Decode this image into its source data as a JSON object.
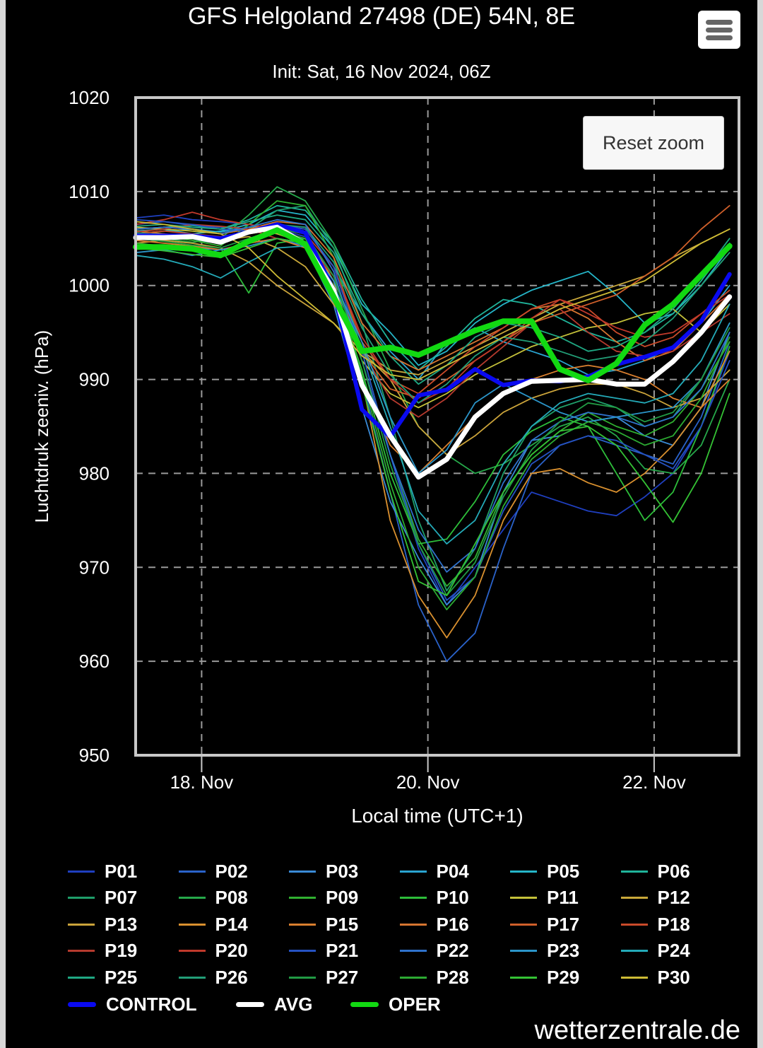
{
  "header": {
    "title": "GFS Helgoland 27498 (DE) 54N, 8E",
    "subtitle": "Init: Sat, 16 Nov 2024, 06Z",
    "menu_icon": "hamburger-menu-icon",
    "reset_zoom_label": "Reset zoom"
  },
  "credit": "wetterzentrale.de",
  "chart_data": {
    "type": "line",
    "title": "GFS Helgoland 27498 (DE) 54N, 8E",
    "subtitle": "Init: Sat, 16 Nov 2024, 06Z",
    "xlabel": "Local time (UTC+1)",
    "ylabel": "Luchtdruk zeeniv. (hPa)",
    "ylim": [
      950,
      1020
    ],
    "yticks": [
      950,
      960,
      970,
      980,
      990,
      1000,
      1010,
      1020
    ],
    "xticks": [
      {
        "label": "18. Nov",
        "hours": 0
      },
      {
        "label": "20. Nov",
        "hours": 48
      },
      {
        "label": "22. Nov",
        "hours": 96
      }
    ],
    "xlim_hours": [
      -14,
      114
    ],
    "x_hours": [
      -14,
      -8,
      -2,
      4,
      10,
      16,
      22,
      28,
      34,
      40,
      46,
      52,
      58,
      64,
      70,
      76,
      82,
      88,
      94,
      100,
      106,
      112
    ],
    "grid": true,
    "legend_position": "bottom",
    "series": [
      {
        "name": "P01",
        "color": "#1f3fbf",
        "width": 1.8,
        "values": [
          1007.2,
          1007.5,
          1007.0,
          1006.8,
          1006.5,
          1006.0,
          1005.2,
          1001.0,
          993.0,
          982.0,
          972.0,
          966.0,
          970.0,
          974.0,
          978.0,
          977.0,
          976.0,
          975.5,
          977.5,
          980.0,
          985.0,
          993.0
        ]
      },
      {
        "name": "P02",
        "color": "#2a62c9",
        "width": 1.8,
        "values": [
          1006.5,
          1006.8,
          1006.4,
          1006.2,
          1006.0,
          1005.5,
          1005.0,
          1000.0,
          990.0,
          978.0,
          966.0,
          960.0,
          963.0,
          972.0,
          980.0,
          983.0,
          984.0,
          983.0,
          982.0,
          981.0,
          986.0,
          994.0
        ]
      },
      {
        "name": "P03",
        "color": "#3a8ad6",
        "width": 1.8,
        "values": [
          1004.0,
          1004.2,
          1004.0,
          1003.8,
          1004.5,
          1005.0,
          1004.2,
          998.0,
          987.0,
          977.0,
          971.0,
          966.0,
          969.0,
          978.0,
          983.5,
          984.0,
          985.5,
          986.0,
          984.0,
          983.0,
          987.0,
          995.0
        ]
      },
      {
        "name": "P04",
        "color": "#2aa3d0",
        "width": 1.8,
        "values": [
          1005.5,
          1005.8,
          1006.0,
          1005.7,
          1006.2,
          1006.5,
          1006.0,
          1002.0,
          997.0,
          993.0,
          990.0,
          994.0,
          995.5,
          994.0,
          993.0,
          992.0,
          990.5,
          991.0,
          992.0,
          993.5,
          996.0,
          1000.0
        ]
      },
      {
        "name": "P05",
        "color": "#25b5c8",
        "width": 1.8,
        "values": [
          1005.8,
          1006.0,
          1005.5,
          1005.8,
          1006.5,
          1008.0,
          1007.5,
          1004.0,
          998.0,
          995.0,
          991.5,
          993.0,
          996.0,
          998.0,
          999.5,
          1000.5,
          1001.5,
          999.0,
          996.0,
          997.0,
          1000.0,
          1004.0
        ]
      },
      {
        "name": "P06",
        "color": "#1fb39a",
        "width": 1.8,
        "values": [
          1006.0,
          1006.2,
          1006.4,
          1006.0,
          1007.0,
          1008.5,
          1008.0,
          1004.5,
          998.5,
          994.0,
          991.0,
          993.5,
          996.5,
          998.5,
          998.0,
          996.5,
          995.0,
          994.0,
          995.0,
          997.0,
          1000.5,
          1004.5
        ]
      },
      {
        "name": "P07",
        "color": "#1f9e6a",
        "width": 1.8,
        "values": [
          1005.0,
          1005.2,
          1004.8,
          1004.5,
          1006.0,
          1008.0,
          1008.5,
          1004.0,
          996.0,
          986.0,
          975.0,
          967.5,
          972.0,
          980.0,
          985.0,
          987.0,
          988.0,
          987.0,
          985.0,
          986.0,
          990.0,
          996.0
        ]
      },
      {
        "name": "P08",
        "color": "#26a84a",
        "width": 1.8,
        "values": [
          1005.3,
          1005.0,
          1004.6,
          1005.0,
          1007.5,
          1010.5,
          1009.0,
          1004.5,
          997.5,
          991.0,
          985.0,
          982.0,
          980.0,
          981.0,
          983.0,
          985.0,
          986.0,
          984.0,
          980.5,
          980.0,
          983.0,
          990.0
        ]
      },
      {
        "name": "P09",
        "color": "#30b030",
        "width": 1.8,
        "values": [
          1005.5,
          1005.2,
          1004.8,
          1004.2,
          1006.5,
          1009.0,
          1008.5,
          1003.0,
          993.0,
          982.0,
          973.0,
          968.0,
          971.0,
          978.0,
          982.0,
          984.5,
          986.5,
          985.0,
          984.0,
          985.5,
          989.0,
          994.0
        ]
      },
      {
        "name": "P10",
        "color": "#2dbd3a",
        "width": 1.8,
        "values": [
          1005.0,
          1004.8,
          1004.5,
          1004.0,
          999.2,
          1004.5,
          1005.0,
          1000.0,
          991.0,
          980.0,
          972.5,
          973.0,
          977.0,
          982.0,
          984.5,
          986.0,
          985.0,
          980.0,
          975.0,
          978.0,
          985.0,
          993.5
        ]
      },
      {
        "name": "P11",
        "color": "#c4c13a",
        "width": 1.8,
        "values": [
          1006.2,
          1006.0,
          1005.8,
          1005.5,
          1006.0,
          1005.5,
          1004.5,
          1000.0,
          992.0,
          988.5,
          987.0,
          988.5,
          990.5,
          992.0,
          993.5,
          994.5,
          995.5,
          996.0,
          997.0,
          997.5,
          995.0,
          998.0
        ]
      },
      {
        "name": "P12",
        "color": "#c9a83a",
        "width": 1.8,
        "values": [
          1005.8,
          1005.5,
          1005.0,
          1004.8,
          1005.2,
          1004.0,
          1002.0,
          998.0,
          993.0,
          991.0,
          990.5,
          992.0,
          993.5,
          995.0,
          996.5,
          998.0,
          999.0,
          1000.0,
          1001.0,
          1003.0,
          1004.5,
          1006.0
        ]
      },
      {
        "name": "P13",
        "color": "#caa33a",
        "width": 1.8,
        "values": [
          1004.5,
          1004.8,
          1004.5,
          1004.0,
          1002.5,
          1000.0,
          998.0,
          996.0,
          993.0,
          990.0,
          985.0,
          982.0,
          984.0,
          986.5,
          988.0,
          989.0,
          989.5,
          989.5,
          988.5,
          987.0,
          988.0,
          991.0
        ]
      },
      {
        "name": "P14",
        "color": "#d9902f",
        "width": 1.8,
        "values": [
          1005.0,
          1005.2,
          1005.0,
          1004.8,
          1005.5,
          1006.0,
          1005.5,
          1000.5,
          990.0,
          975.0,
          967.0,
          962.5,
          967.0,
          975.0,
          980.0,
          980.5,
          979.0,
          978.0,
          980.0,
          983.0,
          987.0,
          993.0
        ]
      },
      {
        "name": "P15",
        "color": "#d97f2f",
        "width": 1.8,
        "values": [
          1004.8,
          1004.5,
          1004.2,
          1003.8,
          1004.5,
          1005.0,
          1004.0,
          999.0,
          990.0,
          983.0,
          980.0,
          983.0,
          986.0,
          988.5,
          990.0,
          991.0,
          991.5,
          991.0,
          990.0,
          988.0,
          987.0,
          990.0
        ]
      },
      {
        "name": "P16",
        "color": "#d67530",
        "width": 1.8,
        "values": [
          1006.0,
          1006.2,
          1006.0,
          1005.5,
          1006.0,
          1006.8,
          1006.5,
          1003.0,
          996.0,
          992.5,
          991.0,
          992.5,
          994.0,
          995.5,
          997.5,
          998.0,
          996.5,
          994.0,
          992.0,
          993.0,
          996.0,
          999.0
        ]
      },
      {
        "name": "P17",
        "color": "#cf5f2a",
        "width": 1.8,
        "values": [
          1005.2,
          1005.5,
          1005.2,
          1005.0,
          1005.5,
          1006.2,
          1005.5,
          1001.0,
          993.0,
          989.0,
          988.0,
          990.0,
          992.0,
          994.0,
          996.0,
          997.0,
          998.0,
          999.0,
          1001.0,
          1003.0,
          1006.0,
          1008.5
        ]
      },
      {
        "name": "P18",
        "color": "#c94a2a",
        "width": 1.8,
        "values": [
          1005.5,
          1005.8,
          1005.5,
          1005.2,
          1005.8,
          1006.5,
          1006.0,
          1002.0,
          994.0,
          990.0,
          988.5,
          991.0,
          993.5,
          995.5,
          997.5,
          998.5,
          997.5,
          995.0,
          993.5,
          994.5,
          997.0,
          999.5
        ]
      },
      {
        "name": "P19",
        "color": "#b53a2e",
        "width": 1.8,
        "values": [
          1005.7,
          1006.0,
          1006.5,
          1006.3,
          1006.0,
          1005.0,
          1004.5,
          1001.0,
          993.0,
          988.0,
          986.0,
          988.0,
          991.0,
          993.5,
          996.0,
          997.5,
          995.0,
          993.0,
          992.5,
          993.0,
          995.0,
          997.0
        ]
      },
      {
        "name": "P20",
        "color": "#c0392b",
        "width": 1.8,
        "values": [
          1006.5,
          1007.0,
          1007.8,
          1007.0,
          1006.5,
          1006.0,
          1005.5,
          1002.0,
          994.5,
          990.0,
          987.5,
          989.0,
          992.0,
          994.0,
          996.5,
          998.5,
          997.0,
          995.5,
          994.5,
          995.0,
          997.0,
          999.0
        ]
      },
      {
        "name": "P21",
        "color": "#2552c2",
        "width": 1.8,
        "values": [
          1007.0,
          1006.8,
          1006.5,
          1006.0,
          1005.8,
          1006.5,
          1006.0,
          1002.0,
          993.0,
          982.0,
          972.5,
          966.5,
          969.0,
          976.0,
          981.0,
          983.0,
          984.0,
          983.5,
          982.0,
          980.5,
          985.0,
          992.0
        ]
      },
      {
        "name": "P22",
        "color": "#2f72cc",
        "width": 1.8,
        "values": [
          1006.0,
          1006.2,
          1006.0,
          1005.5,
          1006.2,
          1007.0,
          1006.5,
          1001.5,
          992.0,
          982.0,
          974.0,
          969.5,
          972.0,
          979.0,
          983.5,
          985.5,
          986.5,
          986.0,
          985.0,
          986.0,
          989.0,
          995.0
        ]
      },
      {
        "name": "P23",
        "color": "#2b95c9",
        "width": 1.8,
        "values": [
          1003.5,
          1003.8,
          1003.2,
          1003.8,
          1004.2,
          1005.0,
          1004.5,
          1000.5,
          994.0,
          986.0,
          980.0,
          982.5,
          987.5,
          989.5,
          988.0,
          986.5,
          985.5,
          986.0,
          986.5,
          987.0,
          990.0,
          996.0
        ]
      },
      {
        "name": "P24",
        "color": "#24aab8",
        "width": 1.8,
        "values": [
          1003.2,
          1002.8,
          1002.0,
          1000.8,
          1002.5,
          1004.0,
          1004.2,
          1000.0,
          993.5,
          985.0,
          976.0,
          972.5,
          975.0,
          981.0,
          985.0,
          987.5,
          988.5,
          988.0,
          987.5,
          988.5,
          992.0,
          998.0
        ]
      },
      {
        "name": "P25",
        "color": "#1fa883",
        "width": 1.8,
        "values": [
          1006.3,
          1006.5,
          1006.2,
          1006.0,
          1006.8,
          1007.5,
          1007.0,
          1003.5,
          997.0,
          992.5,
          989.5,
          991.5,
          994.5,
          996.0,
          995.5,
          994.5,
          993.0,
          993.5,
          995.0,
          997.5,
          1001.0,
          1005.0
        ]
      },
      {
        "name": "P26",
        "color": "#229e77",
        "width": 1.8,
        "values": [
          1005.6,
          1005.4,
          1005.0,
          1004.6,
          1005.5,
          1006.5,
          1006.2,
          1002.5,
          995.5,
          990.5,
          987.5,
          989.5,
          992.5,
          994.5,
          994.0,
          993.0,
          992.0,
          992.5,
          994.0,
          996.5,
          1000.0,
          1003.5
        ]
      },
      {
        "name": "P27",
        "color": "#219a44",
        "width": 1.8,
        "values": [
          1005.0,
          1004.7,
          1004.3,
          1004.0,
          1005.0,
          1006.0,
          1005.5,
          1001.0,
          992.0,
          981.0,
          972.5,
          967.0,
          970.5,
          977.5,
          982.5,
          985.5,
          987.5,
          987.0,
          985.5,
          986.5,
          990.0,
          995.5
        ]
      },
      {
        "name": "P28",
        "color": "#2caa32",
        "width": 1.8,
        "values": [
          1004.5,
          1004.2,
          1003.8,
          1003.5,
          1004.8,
          1005.8,
          1005.0,
          1000.0,
          990.5,
          979.0,
          970.0,
          965.5,
          969.0,
          976.5,
          981.5,
          984.0,
          985.5,
          984.5,
          983.0,
          984.0,
          988.0,
          994.5
        ]
      },
      {
        "name": "P29",
        "color": "#34c234",
        "width": 1.8,
        "values": [
          1004.0,
          1003.7,
          1003.3,
          1003.0,
          1004.0,
          1005.0,
          1004.5,
          999.5,
          989.5,
          978.0,
          968.5,
          967.0,
          972.5,
          978.0,
          982.0,
          984.5,
          985.0,
          983.0,
          979.0,
          974.8,
          980.0,
          988.5
        ]
      },
      {
        "name": "P30",
        "color": "#cdbb35",
        "width": 1.8,
        "values": [
          1006.8,
          1006.5,
          1006.0,
          1005.5,
          1004.0,
          1001.0,
          998.5,
          996.0,
          992.5,
          990.5,
          990.0,
          991.5,
          993.0,
          994.5,
          996.0,
          997.5,
          998.5,
          999.5,
          1000.5,
          1002.5,
          1004.5,
          1006.0
        ]
      },
      {
        "name": "CONTROL",
        "color": "#0a0af0",
        "width": 6,
        "values": [
          1005.3,
          1005.3,
          1005.3,
          1005.0,
          1005.7,
          1006.5,
          1005.6,
          999.5,
          986.8,
          983.9,
          988.3,
          988.9,
          991.1,
          989.4,
          989.9,
          989.8,
          990.3,
          991.6,
          992.4,
          993.4,
          996.2,
          1001.2
        ]
      },
      {
        "name": "AVG",
        "color": "#ffffff",
        "width": 7,
        "values": [
          1005.1,
          1005.1,
          1005.2,
          1004.6,
          1005.7,
          1006.2,
          1004.4,
          999.5,
          989.4,
          984.0,
          979.6,
          981.5,
          986.0,
          988.5,
          989.8,
          989.9,
          990.0,
          989.5,
          989.5,
          991.9,
          995.0,
          998.8
        ]
      },
      {
        "name": "OPER",
        "color": "#12d912",
        "width": 8,
        "values": [
          1004.1,
          1004.1,
          1003.9,
          1003.2,
          1004.7,
          1005.9,
          1004.4,
          998.8,
          993.0,
          993.4,
          992.6,
          993.9,
          995.2,
          996.2,
          996.2,
          991.1,
          989.9,
          991.7,
          995.8,
          998.0,
          1001.1,
          1004.2
        ]
      }
    ]
  }
}
